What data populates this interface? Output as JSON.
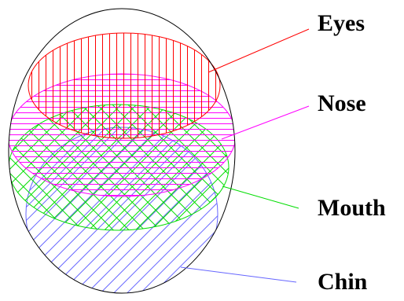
{
  "labels": {
    "eyes": "Eyes",
    "nose": "Nose",
    "mouth": "Mouth",
    "chin": "Chin"
  },
  "colors": {
    "head_outline": "#000000",
    "eyes": "#ff0000",
    "nose": "#ff00ff",
    "mouth": "#00dd00",
    "chin": "#6666ff",
    "background": "#ffffff"
  },
  "regions": [
    {
      "key": "eyes",
      "hatch": "vertical"
    },
    {
      "key": "nose",
      "hatch": "horizontal"
    },
    {
      "key": "mouth",
      "hatch": "crosshatch-diagonal"
    },
    {
      "key": "chin",
      "hatch": "diagonal"
    }
  ]
}
